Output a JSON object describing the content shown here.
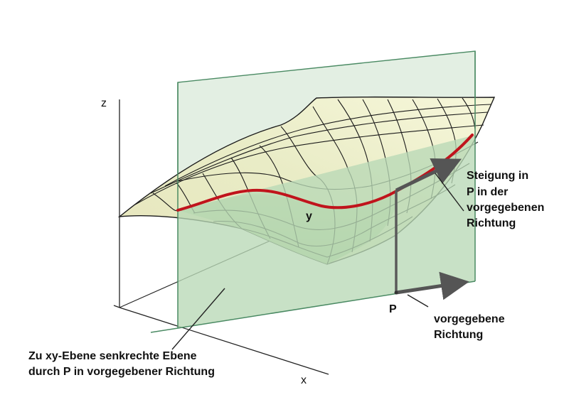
{
  "labels": {
    "axis_z": "z",
    "axis_x": "x",
    "axis_y": "y",
    "point": "P",
    "slope": [
      "Steigung in",
      "P in der",
      "vorgegebenen",
      "Richtung"
    ],
    "direction": [
      "vorgegebene",
      "Richtung"
    ],
    "plane": [
      "Zu xy-Ebene senkrechte Ebene",
      "durch P in vorgegebener Richtung"
    ]
  },
  "colors": {
    "plane_upper": "#e3efe3",
    "plane_lower": "#b9d9b6",
    "plane_edge": "#4a8a63",
    "surface_light": "#f4f5d6",
    "surface_mid": "#dfe5b8",
    "surface_shadow": "#a8cb95",
    "grid": "#1a1a1a",
    "curve": "#c0141c",
    "arrow": "#555555"
  }
}
